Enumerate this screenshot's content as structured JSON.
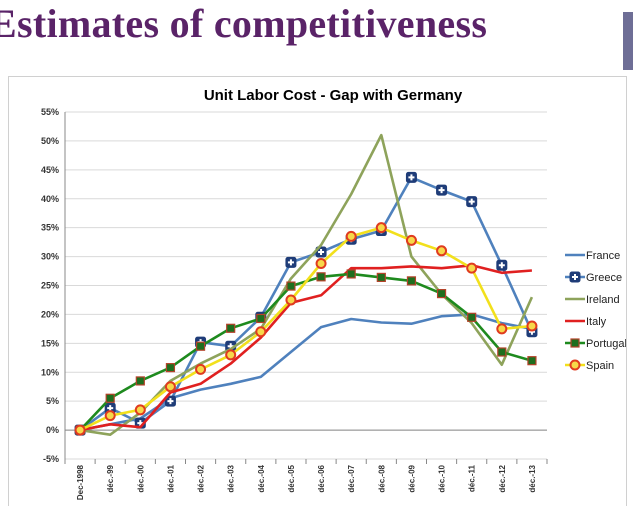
{
  "slide": {
    "title": "Estimates of competitiveness"
  },
  "chart_data": {
    "type": "line",
    "title": "Unit Labor Cost - Gap with Germany",
    "xlabel": "",
    "ylabel": "",
    "ylim": [
      -0.05,
      0.55
    ],
    "ytick_values": [
      -0.05,
      0,
      0.05,
      0.1,
      0.15,
      0.2,
      0.25,
      0.3,
      0.35,
      0.4,
      0.45,
      0.5,
      0.55
    ],
    "ytick_labels": [
      "-5%",
      "0%",
      "5%",
      "10%",
      "15%",
      "20%",
      "25%",
      "30%",
      "35%",
      "40%",
      "45%",
      "50%",
      "55%"
    ],
    "categories": [
      "Dec-1998",
      "déc.-99",
      "déc.-00",
      "déc.-01",
      "déc.-02",
      "déc.-03",
      "déc.-04",
      "déc.-05",
      "déc.-06",
      "déc.-07",
      "déc.-08",
      "déc.-09",
      "déc.-10",
      "déc.-11",
      "déc.-12",
      "déc.-13"
    ],
    "grid": "horizontal",
    "legend_position": "right",
    "series": [
      {
        "name": "France",
        "color": "#4f81bd",
        "marker": "none",
        "values": [
          0,
          0.01,
          0.02,
          0.055,
          0.07,
          0.08,
          0.092,
          0.135,
          0.178,
          0.192,
          0.186,
          0.184,
          0.197,
          0.2,
          0.185,
          0.175
        ]
      },
      {
        "name": "Greece",
        "color": "#4f81bd",
        "marker": "cross-square",
        "values": [
          0,
          0.038,
          0.012,
          0.05,
          0.152,
          0.145,
          0.195,
          0.29,
          0.308,
          0.33,
          0.345,
          0.437,
          0.415,
          0.395,
          0.285,
          0.17
        ]
      },
      {
        "name": "Ireland",
        "color": "#8ea35b",
        "marker": "none",
        "values": [
          0,
          -0.008,
          0.03,
          0.085,
          0.115,
          0.14,
          0.175,
          0.262,
          0.32,
          0.408,
          0.51,
          0.3,
          0.235,
          0.185,
          0.113,
          0.23
        ]
      },
      {
        "name": "Italy",
        "color": "#e02020",
        "marker": "none",
        "values": [
          0,
          0.01,
          0.005,
          0.065,
          0.08,
          0.115,
          0.16,
          0.22,
          0.233,
          0.28,
          0.28,
          0.283,
          0.28,
          0.285,
          0.272,
          0.276
        ]
      },
      {
        "name": "Portugal",
        "color": "#1e8a1e",
        "marker": "square",
        "values": [
          0,
          0.055,
          0.085,
          0.108,
          0.145,
          0.176,
          0.193,
          0.249,
          0.265,
          0.27,
          0.264,
          0.258,
          0.236,
          0.195,
          0.135,
          0.12
        ]
      },
      {
        "name": "Spain",
        "color": "#f2e01c",
        "marker": "circle",
        "values": [
          0,
          0.025,
          0.035,
          0.075,
          0.105,
          0.13,
          0.17,
          0.225,
          0.288,
          0.335,
          0.35,
          0.328,
          0.31,
          0.28,
          0.175,
          0.18
        ]
      }
    ]
  }
}
